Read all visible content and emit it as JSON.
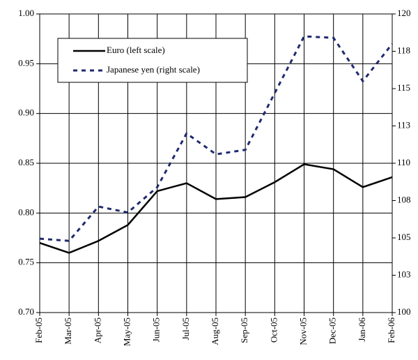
{
  "chart_data": {
    "type": "line",
    "categories": [
      "Feb-05",
      "Mar-05",
      "Apr-05",
      "May-05",
      "Jun-05",
      "Jul-05",
      "Aug-05",
      "Sep-05",
      "Oct-05",
      "Nov-05",
      "Dec-05",
      "Jan-06",
      "Feb-06"
    ],
    "series": [
      {
        "name": "Euro (left scale)",
        "color": "#000000",
        "dash": "solid",
        "values": [
          0.77,
          0.76,
          0.772,
          0.788,
          0.822,
          0.83,
          0.814,
          0.816,
          0.831,
          0.849,
          0.844,
          0.826,
          0.836
        ]
      },
      {
        "name": "Japanese yen (right scale)",
        "color": "#1f2a6e",
        "dash": "dashed",
        "axis": "y2",
        "values": [
          104.95,
          104.8,
          107.1,
          106.7,
          108.4,
          112.0,
          110.6,
          110.9,
          114.7,
          118.5,
          118.4,
          115.5,
          118.0
        ]
      }
    ],
    "ylim": [
      0.7,
      1.0
    ],
    "yticks": [
      {
        "value": 0.7,
        "label": "0.70"
      },
      {
        "value": 0.75,
        "label": "0.75"
      },
      {
        "value": 0.8,
        "label": "0.80"
      },
      {
        "value": 0.85,
        "label": "0.85"
      },
      {
        "value": 0.9,
        "label": "0.90"
      },
      {
        "value": 0.95,
        "label": "0.95"
      },
      {
        "value": 1.0,
        "label": "1.00"
      }
    ],
    "y2lim": [
      100,
      120
    ],
    "y2ticks": [
      100,
      {
        "value": 102.5,
        "label": "103"
      },
      105,
      {
        "value": 107.5,
        "label": "108"
      },
      110,
      {
        "value": 112.5,
        "label": "113"
      },
      115,
      {
        "value": 117.5,
        "label": "118"
      },
      120
    ],
    "grid": true,
    "legend": "upper left"
  }
}
